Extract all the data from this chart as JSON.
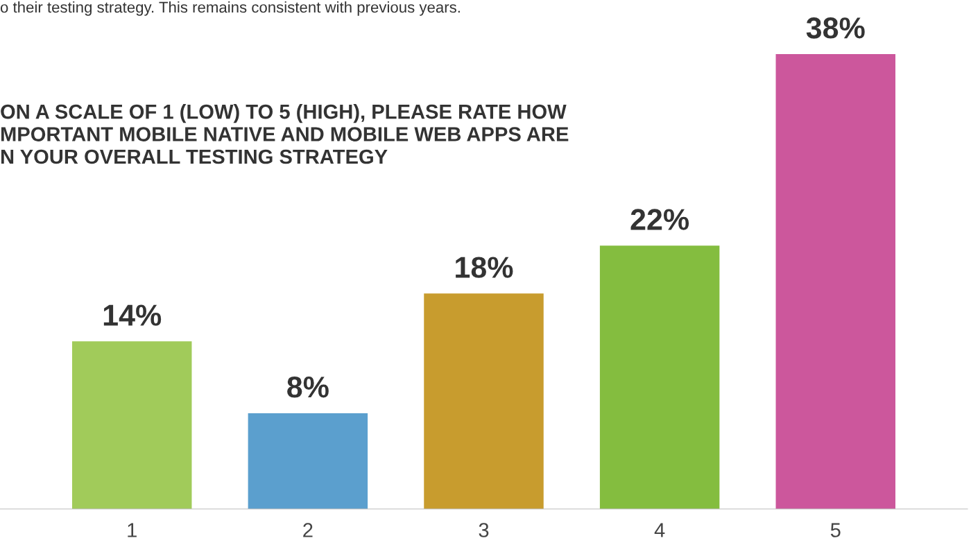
{
  "chart_data": {
    "type": "bar",
    "title": "ON A SCALE OF 1 (LOW) TO 5 (HIGH), PLEASE RATE HOW\nMPORTANT MOBILE NATIVE AND MOBILE WEB APPS ARE\nN YOUR OVERALL TESTING STRATEGY",
    "annotations": [
      "o their testing strategy. This remains consistent with previous years."
    ],
    "categories": [
      "1",
      "2",
      "3",
      "4",
      "5"
    ],
    "values": [
      14,
      8,
      18,
      22,
      38
    ],
    "colors": [
      "#a1cb5a",
      "#5b9fce",
      "#c89c2e",
      "#84bd3f",
      "#cc579c"
    ],
    "value_labels": [
      "14%",
      "8%",
      "18%",
      "22%",
      "38%"
    ],
    "grid": false,
    "legend": false
  }
}
